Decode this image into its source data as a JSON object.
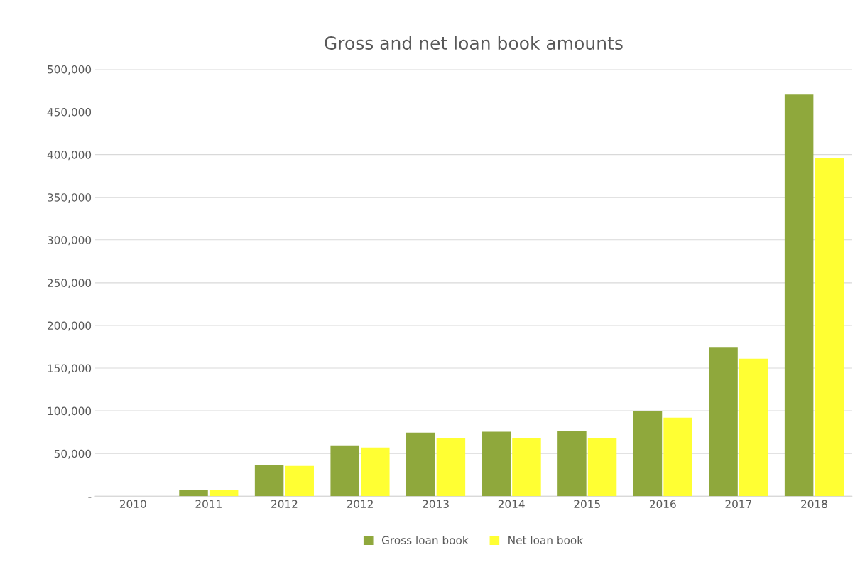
{
  "chart_data": {
    "type": "bar",
    "title": "Gross and net loan book amounts",
    "categories": [
      "2010",
      "2011",
      "2012",
      "2012",
      "2013",
      "2014",
      "2015",
      "2016",
      "2017",
      "2018"
    ],
    "series": [
      {
        "name": "Gross loan book",
        "color": "#8fa83c",
        "values": [
          0,
          7500,
          36500,
          59500,
          74500,
          75500,
          76500,
          100000,
          174000,
          471000
        ]
      },
      {
        "name": "Net loan book",
        "color": "#ffff33",
        "values": [
          0,
          7500,
          35500,
          57000,
          68000,
          68000,
          68000,
          92000,
          161000,
          396000
        ]
      }
    ],
    "ylim": [
      0,
      500000
    ],
    "yticks": [
      {
        "value": 0,
        "label": "-"
      },
      {
        "value": 50000,
        "label": "50,000"
      },
      {
        "value": 100000,
        "label": "100,000"
      },
      {
        "value": 150000,
        "label": "150,000"
      },
      {
        "value": 200000,
        "label": "200,000"
      },
      {
        "value": 250000,
        "label": "250,000"
      },
      {
        "value": 300000,
        "label": "300,000"
      },
      {
        "value": 350000,
        "label": "350,000"
      },
      {
        "value": 400000,
        "label": "400,000"
      },
      {
        "value": 450000,
        "label": "450,000"
      },
      {
        "value": 500000,
        "label": "500,000"
      }
    ],
    "grid": "y",
    "legend": "bottom"
  }
}
